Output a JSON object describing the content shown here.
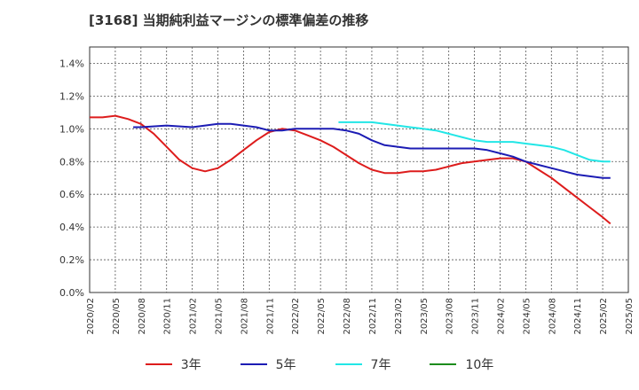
{
  "title": "[3168]  当期純利益マージンの標準偏差の推移",
  "chart_data": {
    "type": "line",
    "y_ticks": [
      "0.0%",
      "0.2%",
      "0.4%",
      "0.6%",
      "0.8%",
      "1.0%",
      "1.2%",
      "1.4%"
    ],
    "y_tick_values": [
      0,
      0.2,
      0.4,
      0.6,
      0.8,
      1.0,
      1.2,
      1.4
    ],
    "ylim": [
      0,
      1.5
    ],
    "x_ticks": [
      "2020/02",
      "2020/05",
      "2020/08",
      "2020/11",
      "2021/02",
      "2021/05",
      "2021/08",
      "2021/11",
      "2022/02",
      "2022/05",
      "2022/08",
      "2022/11",
      "2023/02",
      "2023/05",
      "2023/08",
      "2023/11",
      "2024/02",
      "2024/05",
      "2024/08",
      "2024/11",
      "2025/02",
      "2025/05"
    ],
    "xlim": [
      0,
      21
    ],
    "grid": true,
    "legend_position": "bottom",
    "series": [
      {
        "name": "3年",
        "color": "#dd1c1c",
        "points": [
          [
            0,
            1.07
          ],
          [
            0.5,
            1.07
          ],
          [
            1,
            1.08
          ],
          [
            1.5,
            1.06
          ],
          [
            2,
            1.03
          ],
          [
            2.5,
            0.97
          ],
          [
            3,
            0.89
          ],
          [
            3.5,
            0.81
          ],
          [
            4,
            0.76
          ],
          [
            4.5,
            0.74
          ],
          [
            5,
            0.76
          ],
          [
            5.5,
            0.81
          ],
          [
            6,
            0.87
          ],
          [
            6.5,
            0.93
          ],
          [
            7,
            0.98
          ],
          [
            7.5,
            1.0
          ],
          [
            8,
            0.99
          ],
          [
            8.5,
            0.96
          ],
          [
            9,
            0.93
          ],
          [
            9.5,
            0.89
          ],
          [
            10,
            0.84
          ],
          [
            10.5,
            0.79
          ],
          [
            11,
            0.75
          ],
          [
            11.5,
            0.73
          ],
          [
            12,
            0.73
          ],
          [
            12.5,
            0.74
          ],
          [
            13,
            0.74
          ],
          [
            13.5,
            0.75
          ],
          [
            14,
            0.77
          ],
          [
            14.5,
            0.79
          ],
          [
            15,
            0.8
          ],
          [
            15.5,
            0.81
          ],
          [
            16,
            0.82
          ],
          [
            16.5,
            0.82
          ],
          [
            17,
            0.8
          ],
          [
            17.5,
            0.75
          ],
          [
            18,
            0.7
          ],
          [
            18.5,
            0.64
          ],
          [
            19,
            0.58
          ],
          [
            19.5,
            0.52
          ],
          [
            20,
            0.46
          ],
          [
            20.3,
            0.42
          ]
        ]
      },
      {
        "name": "5年",
        "color": "#1c1cb4",
        "points": [
          [
            1.7,
            1.01
          ],
          [
            2,
            1.01
          ],
          [
            3,
            1.02
          ],
          [
            4,
            1.01
          ],
          [
            4.5,
            1.02
          ],
          [
            5,
            1.03
          ],
          [
            5.5,
            1.03
          ],
          [
            6,
            1.02
          ],
          [
            6.5,
            1.01
          ],
          [
            7,
            0.99
          ],
          [
            7.5,
            0.99
          ],
          [
            8,
            1.0
          ],
          [
            9,
            1.0
          ],
          [
            9.5,
            1.0
          ],
          [
            10,
            0.99
          ],
          [
            10.5,
            0.97
          ],
          [
            11,
            0.93
          ],
          [
            11.5,
            0.9
          ],
          [
            12,
            0.89
          ],
          [
            12.5,
            0.88
          ],
          [
            13,
            0.88
          ],
          [
            13.5,
            0.88
          ],
          [
            14,
            0.88
          ],
          [
            14.5,
            0.88
          ],
          [
            15,
            0.88
          ],
          [
            15.5,
            0.87
          ],
          [
            16,
            0.85
          ],
          [
            16.5,
            0.83
          ],
          [
            17,
            0.8
          ],
          [
            17.5,
            0.78
          ],
          [
            18,
            0.76
          ],
          [
            18.5,
            0.74
          ],
          [
            19,
            0.72
          ],
          [
            19.5,
            0.71
          ],
          [
            20,
            0.7
          ],
          [
            20.3,
            0.7
          ]
        ]
      },
      {
        "name": "7年",
        "color": "#22e6e6",
        "points": [
          [
            9.7,
            1.04
          ],
          [
            10,
            1.04
          ],
          [
            11,
            1.04
          ],
          [
            11.5,
            1.03
          ],
          [
            12,
            1.02
          ],
          [
            12.5,
            1.01
          ],
          [
            13,
            1.0
          ],
          [
            13.5,
            0.99
          ],
          [
            14,
            0.97
          ],
          [
            14.5,
            0.95
          ],
          [
            15,
            0.93
          ],
          [
            15.5,
            0.92
          ],
          [
            16,
            0.92
          ],
          [
            16.5,
            0.92
          ],
          [
            17,
            0.91
          ],
          [
            17.5,
            0.9
          ],
          [
            18,
            0.89
          ],
          [
            18.5,
            0.87
          ],
          [
            19,
            0.84
          ],
          [
            19.5,
            0.81
          ],
          [
            20,
            0.8
          ],
          [
            20.3,
            0.8
          ]
        ]
      },
      {
        "name": "10年",
        "color": "#1c8c1c",
        "points": []
      }
    ]
  }
}
